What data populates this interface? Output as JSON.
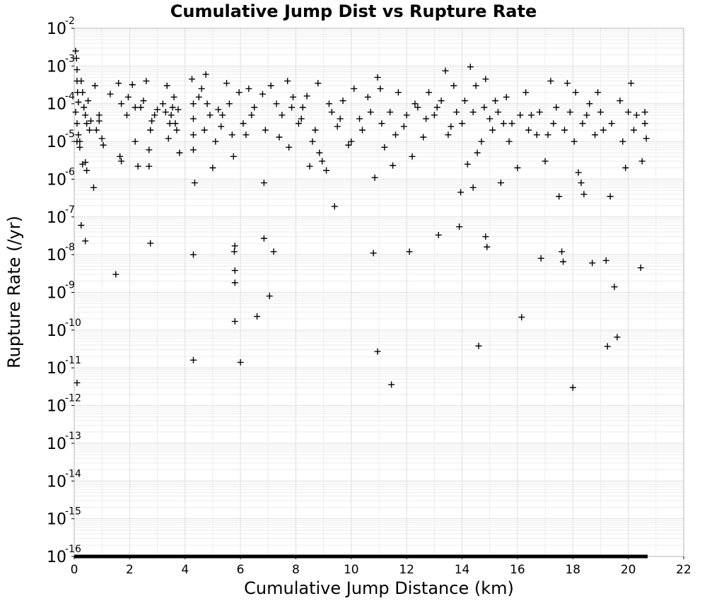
{
  "chart_data": {
    "type": "scatter",
    "title": "Cumulative Jump Dist vs Rupture Rate",
    "xlabel": "Cumulative Jump Distance (km)",
    "ylabel": "Rupture Rate (/yr)",
    "xlim": [
      0,
      22
    ],
    "ylim": [
      1e-16,
      0.01
    ],
    "y_scale": "log",
    "x_ticks": [
      "0",
      "2",
      "4",
      "6",
      "8",
      "10",
      "12",
      "14",
      "16",
      "18",
      "20",
      "22"
    ],
    "y_ticks": [
      {
        "base": "10",
        "exp": "-2"
      },
      {
        "base": "10",
        "exp": "-3"
      },
      {
        "base": "10",
        "exp": "-4"
      },
      {
        "base": "10",
        "exp": "-5"
      },
      {
        "base": "10",
        "exp": "-6"
      },
      {
        "base": "10",
        "exp": "-7"
      },
      {
        "base": "10",
        "exp": "-8"
      },
      {
        "base": "10",
        "exp": "-9"
      },
      {
        "base": "10",
        "exp": "-10"
      },
      {
        "base": "10",
        "exp": "-11"
      },
      {
        "base": "10",
        "exp": "-12"
      },
      {
        "base": "10",
        "exp": "-13"
      },
      {
        "base": "10",
        "exp": "-14"
      },
      {
        "base": "10",
        "exp": "-15"
      },
      {
        "base": "10",
        "exp": "-16"
      }
    ],
    "grid": true,
    "marker": "+",
    "marker_color": "#000000",
    "zero_rate_band": {
      "x_range": [
        0,
        20.7
      ],
      "y": 1e-16
    },
    "points": [
      [
        0.05,
        0.0025
      ],
      [
        0.08,
        0.0016
      ],
      [
        0.1,
        0.0008
      ],
      [
        0.1,
        0.0004
      ],
      [
        0.12,
        0.0002
      ],
      [
        0.15,
        0.00011
      ],
      [
        0.05,
        6e-05
      ],
      [
        0.1,
        3e-05
      ],
      [
        0.15,
        1.5e-05
      ],
      [
        0.2,
        1e-05
      ],
      [
        0.25,
        0.0004
      ],
      [
        0.3,
        0.0002
      ],
      [
        0.35,
        8e-05
      ],
      [
        0.4,
        5e-05
      ],
      [
        0.45,
        3e-05
      ],
      [
        0.5,
        0.00012
      ],
      [
        0.3,
        2.5e-06
      ],
      [
        0.4,
        2.8e-06
      ],
      [
        0.45,
        1.7e-06
      ],
      [
        0.1,
        1e-05
      ],
      [
        0.2,
        7e-06
      ],
      [
        0.6,
        3.5e-05
      ],
      [
        0.7,
        6e-07
      ],
      [
        0.75,
        0.0003
      ],
      [
        0.8,
        2e-05
      ],
      [
        0.9,
        5e-05
      ],
      [
        1.0,
        1.2e-05
      ],
      [
        1.05,
        8e-06
      ],
      [
        0.25,
        6e-08
      ],
      [
        0.4,
        2.3e-08
      ],
      [
        0.1,
        4e-12
      ],
      [
        1.3,
        0.00018
      ],
      [
        1.6,
        0.00035
      ],
      [
        1.65,
        4e-06
      ],
      [
        1.7,
        0.0001
      ],
      [
        1.9,
        5e-05
      ],
      [
        1.95,
        0.00015
      ],
      [
        2.1,
        0.00032
      ],
      [
        2.2,
        1e-05
      ],
      [
        2.3,
        2.2e-06
      ],
      [
        2.4,
        8e-05
      ],
      [
        2.5,
        0.00012
      ],
      [
        2.6,
        0.0004
      ],
      [
        2.7,
        6e-06
      ],
      [
        2.75,
        2e-05
      ],
      [
        2.8,
        3.5e-05
      ],
      [
        2.7,
        2.2e-06
      ],
      [
        2.75,
        2e-08
      ],
      [
        1.5,
        3e-09
      ],
      [
        3.0,
        7e-05
      ],
      [
        3.2,
        0.0001
      ],
      [
        3.35,
        0.0003
      ],
      [
        3.4,
        1.2e-05
      ],
      [
        3.5,
        5e-05
      ],
      [
        3.6,
        0.00015
      ],
      [
        3.7,
        2e-05
      ],
      [
        3.8,
        5e-06
      ],
      [
        3.55,
        8e-05
      ],
      [
        3.65,
        3e-05
      ],
      [
        4.25,
        0.00045
      ],
      [
        4.3,
        0.0001
      ],
      [
        4.3,
        4e-05
      ],
      [
        4.3,
        1.5e-05
      ],
      [
        4.3,
        6e-06
      ],
      [
        4.35,
        8e-07
      ],
      [
        4.3,
        1e-08
      ],
      [
        4.3,
        1.6e-11
      ],
      [
        4.6,
        0.00025
      ],
      [
        4.75,
        0.0006
      ],
      [
        4.8,
        0.0001
      ],
      [
        4.9,
        5e-05
      ],
      [
        5.0,
        2e-06
      ],
      [
        5.1,
        1e-05
      ],
      [
        5.2,
        7e-05
      ],
      [
        5.3,
        2.5e-05
      ],
      [
        5.5,
        0.00035
      ],
      [
        5.6,
        0.0001
      ],
      [
        5.75,
        4e-06
      ],
      [
        5.8,
        1.7e-08
      ],
      [
        5.78,
        1.2e-08
      ],
      [
        5.8,
        3.8e-09
      ],
      [
        5.8,
        1.8e-09
      ],
      [
        5.8,
        1.7e-10
      ],
      [
        5.95,
        0.0002
      ],
      [
        6.0,
        1.4e-11
      ],
      [
        6.1,
        3e-05
      ],
      [
        6.3,
        0.00025
      ],
      [
        6.5,
        8e-05
      ],
      [
        6.6,
        2.3e-10
      ],
      [
        6.8,
        0.00018
      ],
      [
        6.85,
        8e-07
      ],
      [
        6.85,
        2.7e-08
      ],
      [
        7.05,
        8e-10
      ],
      [
        7.1,
        0.0003
      ],
      [
        7.2,
        1.2e-08
      ],
      [
        7.3,
        0.0001
      ],
      [
        7.5,
        5e-05
      ],
      [
        7.7,
        0.0004
      ],
      [
        7.75,
        7e-06
      ],
      [
        7.9,
        0.00015
      ],
      [
        8.1,
        3e-05
      ],
      [
        8.25,
        8e-05
      ],
      [
        8.4,
        0.00016
      ],
      [
        8.5,
        2.2e-06
      ],
      [
        8.6,
        1e-05
      ],
      [
        8.8,
        0.00035
      ],
      [
        8.85,
        5e-06
      ],
      [
        8.95,
        3e-06
      ],
      [
        9.1,
        1.7e-06
      ],
      [
        9.3,
        6e-05
      ],
      [
        9.4,
        1.9e-07
      ],
      [
        9.5,
        2.5e-05
      ],
      [
        9.7,
        0.00012
      ],
      [
        9.9,
        8e-06
      ],
      [
        10.1,
        0.00025
      ],
      [
        10.3,
        4e-05
      ],
      [
        10.6,
        0.00015
      ],
      [
        10.8,
        1.1e-08
      ],
      [
        10.85,
        1.1e-06
      ],
      [
        10.95,
        0.0005
      ],
      [
        10.95,
        2.7e-11
      ],
      [
        11.05,
        0.00025
      ],
      [
        11.2,
        7e-06
      ],
      [
        11.4,
        6e-05
      ],
      [
        11.45,
        3.6e-12
      ],
      [
        11.5,
        2.3e-06
      ],
      [
        11.7,
        0.0002
      ],
      [
        11.9,
        2.5e-05
      ],
      [
        12.1,
        1.2e-08
      ],
      [
        12.2,
        4e-06
      ],
      [
        12.4,
        8e-05
      ],
      [
        12.6,
        1.3e-05
      ],
      [
        12.8,
        0.0002
      ],
      [
        13.0,
        5e-05
      ],
      [
        13.15,
        3.3e-08
      ],
      [
        13.25,
        0.00012
      ],
      [
        13.4,
        0.00075
      ],
      [
        13.6,
        2.5e-05
      ],
      [
        13.7,
        0.0003
      ],
      [
        13.9,
        5.5e-08
      ],
      [
        13.95,
        4.5e-07
      ],
      [
        14.1,
        0.00012
      ],
      [
        14.2,
        2.5e-06
      ],
      [
        14.3,
        0.00095
      ],
      [
        14.4,
        6e-07
      ],
      [
        14.5,
        0.0003
      ],
      [
        14.55,
        5e-06
      ],
      [
        14.6,
        3.8e-11
      ],
      [
        14.8,
        8e-05
      ],
      [
        14.85,
        0.00045
      ],
      [
        14.85,
        3e-08
      ],
      [
        14.9,
        1.6e-08
      ],
      [
        15.1,
        2e-05
      ],
      [
        15.3,
        6e-05
      ],
      [
        15.4,
        8e-07
      ],
      [
        15.6,
        0.00015
      ],
      [
        15.8,
        3e-05
      ],
      [
        16.0,
        2e-06
      ],
      [
        16.15,
        2.2e-10
      ],
      [
        16.3,
        0.0002
      ],
      [
        16.5,
        5e-05
      ],
      [
        16.7,
        1.5e-05
      ],
      [
        16.85,
        8e-09
      ],
      [
        17.0,
        3e-06
      ],
      [
        17.2,
        0.0004
      ],
      [
        17.4,
        8e-05
      ],
      [
        17.5,
        3.5e-07
      ],
      [
        17.6,
        1.2e-08
      ],
      [
        17.65,
        6.5e-09
      ],
      [
        17.8,
        0.00035
      ],
      [
        17.9,
        6e-05
      ],
      [
        18.0,
        3e-12
      ],
      [
        18.1,
        0.0002
      ],
      [
        18.2,
        1.5e-06
      ],
      [
        18.3,
        8e-07
      ],
      [
        18.4,
        4e-07
      ],
      [
        18.5,
        5e-05
      ],
      [
        18.7,
        6e-09
      ],
      [
        18.9,
        0.0002
      ],
      [
        19.1,
        2e-05
      ],
      [
        19.2,
        7e-09
      ],
      [
        19.25,
        3.7e-11
      ],
      [
        19.35,
        3.5e-07
      ],
      [
        19.5,
        1.4e-09
      ],
      [
        19.6,
        6.5e-11
      ],
      [
        19.7,
        0.00012
      ],
      [
        19.9,
        2e-06
      ],
      [
        20.1,
        0.00035
      ],
      [
        20.3,
        5e-05
      ],
      [
        20.45,
        4.5e-09
      ],
      [
        20.5,
        3e-06
      ],
      [
        20.6,
        3e-05
      ],
      [
        20.65,
        1.2e-05
      ],
      [
        20.6,
        6e-05
      ],
      [
        0.55,
        2e-05
      ],
      [
        0.9,
        3.5e-05
      ],
      [
        1.7,
        3e-06
      ],
      [
        2.2,
        8e-05
      ],
      [
        2.9,
        5e-05
      ],
      [
        3.3,
        6e-05
      ],
      [
        3.45,
        3e-05
      ],
      [
        3.75,
        7e-05
      ],
      [
        4.5,
        0.00015
      ],
      [
        4.7,
        2e-05
      ],
      [
        5.35,
        5e-05
      ],
      [
        5.7,
        1.5e-05
      ],
      [
        6.2,
        1.5e-05
      ],
      [
        6.4,
        5e-05
      ],
      [
        6.9,
        2e-05
      ],
      [
        7.4,
        1.3e-05
      ],
      [
        7.85,
        8e-05
      ],
      [
        8.2,
        4e-05
      ],
      [
        8.7,
        2e-05
      ],
      [
        9.2,
        0.0001
      ],
      [
        9.6,
        4e-05
      ],
      [
        10.0,
        1e-05
      ],
      [
        10.4,
        2e-05
      ],
      [
        10.7,
        6e-05
      ],
      [
        11.1,
        3e-05
      ],
      [
        11.6,
        1.5e-05
      ],
      [
        12.0,
        5e-05
      ],
      [
        12.3,
        0.0001
      ],
      [
        12.7,
        4e-05
      ],
      [
        13.1,
        8e-05
      ],
      [
        13.5,
        1.5e-05
      ],
      [
        13.8,
        6e-05
      ],
      [
        14.0,
        3e-05
      ],
      [
        14.4,
        6e-05
      ],
      [
        14.7,
        1e-05
      ],
      [
        15.0,
        4e-05
      ],
      [
        15.2,
        0.00012
      ],
      [
        15.5,
        3e-05
      ],
      [
        15.7,
        1e-05
      ],
      [
        16.1,
        5e-05
      ],
      [
        16.4,
        2e-05
      ],
      [
        16.8,
        6e-05
      ],
      [
        17.1,
        1.5e-05
      ],
      [
        17.3,
        3e-05
      ],
      [
        17.7,
        2e-05
      ],
      [
        18.05,
        1e-05
      ],
      [
        18.35,
        3e-05
      ],
      [
        18.6,
        0.0001
      ],
      [
        18.8,
        1.5e-05
      ],
      [
        19.0,
        6e-05
      ],
      [
        19.4,
        3e-05
      ],
      [
        19.8,
        1e-05
      ],
      [
        20.0,
        6e-05
      ],
      [
        20.2,
        2e-05
      ]
    ]
  }
}
